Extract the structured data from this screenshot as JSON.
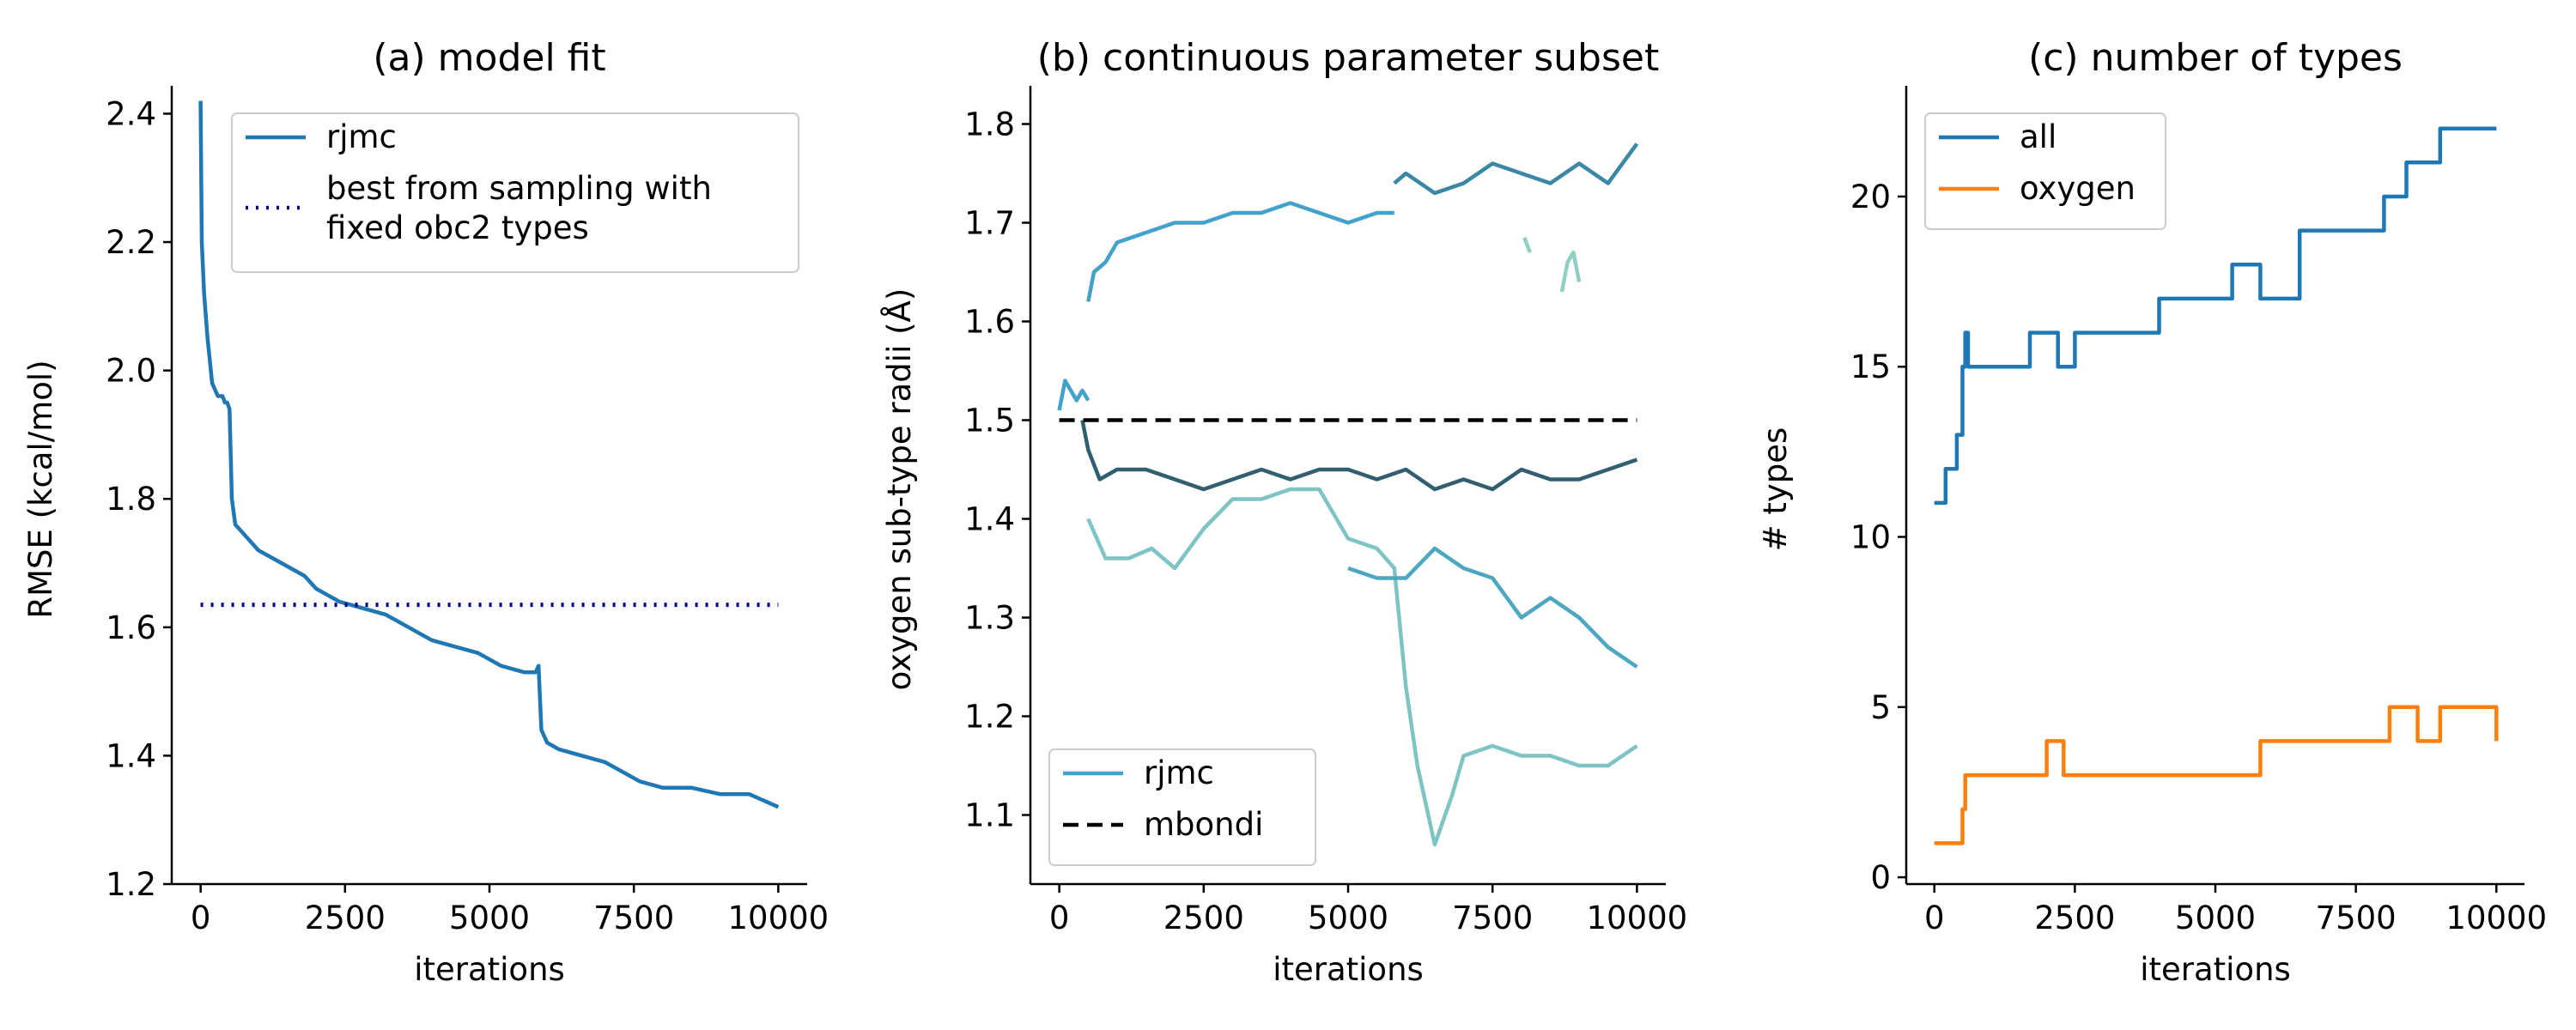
{
  "chart_data": [
    {
      "type": "line",
      "title": "(a) model fit",
      "xlabel": "iterations",
      "ylabel": "RMSE (kcal/mol)",
      "xlim": [
        -500,
        10500
      ],
      "ylim": [
        1.2,
        2.43
      ],
      "xticks": [
        0,
        2500,
        5000,
        7500,
        10000
      ],
      "yticks": [
        1.2,
        1.4,
        1.6,
        1.8,
        2.0,
        2.2,
        2.4
      ],
      "ytick_labels": [
        "1.2",
        "1.4",
        "1.6",
        "1.8",
        "2.0",
        "2.2",
        "2.4"
      ],
      "legend": {
        "position": "upper right",
        "entries": [
          "rjmc",
          "best from sampling with\nfixed obc2 types"
        ]
      },
      "series": [
        {
          "name": "rjmc",
          "color": "#1f77b4",
          "style": "solid",
          "x": [
            0,
            20,
            60,
            120,
            200,
            300,
            380,
            420,
            460,
            500,
            540,
            600,
            800,
            1000,
            1400,
            1800,
            2000,
            2400,
            2800,
            3200,
            3600,
            4000,
            4400,
            4800,
            5200,
            5600,
            5800,
            5850,
            5900,
            6000,
            6200,
            6600,
            7000,
            7400,
            7600,
            8000,
            8500,
            9000,
            9500,
            10000
          ],
          "y": [
            2.42,
            2.2,
            2.12,
            2.05,
            1.98,
            1.96,
            1.96,
            1.95,
            1.95,
            1.94,
            1.8,
            1.76,
            1.74,
            1.72,
            1.7,
            1.68,
            1.66,
            1.64,
            1.63,
            1.62,
            1.6,
            1.58,
            1.57,
            1.56,
            1.54,
            1.53,
            1.53,
            1.54,
            1.44,
            1.42,
            1.41,
            1.4,
            1.39,
            1.37,
            1.36,
            1.35,
            1.35,
            1.34,
            1.34,
            1.32
          ]
        },
        {
          "name": "best from sampling with\nfixed obc2 types",
          "color": "#00008b",
          "style": "dotted",
          "x": [
            0,
            10000
          ],
          "y": [
            1.635,
            1.635
          ]
        }
      ]
    },
    {
      "type": "line",
      "title": "(b) continuous parameter subset",
      "xlabel": "iterations",
      "ylabel": "oxygen sub-type radii (Å)",
      "xlim": [
        -500,
        10500
      ],
      "ylim": [
        1.03,
        1.83
      ],
      "xticks": [
        0,
        2500,
        5000,
        7500,
        10000
      ],
      "yticks": [
        1.1,
        1.2,
        1.3,
        1.4,
        1.5,
        1.6,
        1.7,
        1.8
      ],
      "ytick_labels": [
        "1.1",
        "1.2",
        "1.3",
        "1.4",
        "1.5",
        "1.6",
        "1.7",
        "1.8"
      ],
      "legend": {
        "position": "lower left",
        "entries": [
          "rjmc",
          "mbondi"
        ]
      },
      "series": [
        {
          "name": "rjmc",
          "color": "#43a2ca",
          "style": "solid",
          "x": [
            0,
            100,
            200,
            300,
            400,
            500
          ],
          "y": [
            1.51,
            1.54,
            1.53,
            1.52,
            1.53,
            1.52
          ]
        },
        {
          "name": "",
          "color": "#43a2ca",
          "style": "solid",
          "x": [
            500,
            600,
            800,
            1000,
            1500,
            2000,
            2500,
            3000,
            3500,
            4000,
            4500,
            5000,
            5500,
            5800
          ],
          "y": [
            1.62,
            1.65,
            1.66,
            1.68,
            1.69,
            1.7,
            1.7,
            1.71,
            1.71,
            1.72,
            1.71,
            1.7,
            1.71,
            1.71
          ]
        },
        {
          "name": "",
          "color": "#3a87a6",
          "style": "solid",
          "x": [
            5800,
            6000,
            6500,
            7000,
            7500,
            8000,
            8500,
            9000,
            9500,
            10000
          ],
          "y": [
            1.74,
            1.75,
            1.73,
            1.74,
            1.76,
            1.75,
            1.74,
            1.76,
            1.74,
            1.78
          ]
        },
        {
          "name": "",
          "color": "#315f70",
          "style": "solid",
          "x": [
            400,
            500,
            700,
            1000,
            1500,
            2000,
            2500,
            3000,
            3500,
            4000,
            4500,
            5000,
            5500,
            6000,
            6500,
            7000,
            7500,
            8000,
            8500,
            9000,
            9500,
            10000
          ],
          "y": [
            1.5,
            1.47,
            1.44,
            1.45,
            1.45,
            1.44,
            1.43,
            1.44,
            1.45,
            1.44,
            1.45,
            1.45,
            1.44,
            1.45,
            1.43,
            1.44,
            1.43,
            1.45,
            1.44,
            1.44,
            1.45,
            1.46
          ]
        },
        {
          "name": "",
          "color": "#7fc4c4",
          "style": "solid",
          "x": [
            500,
            800,
            1200,
            1600,
            2000,
            2500,
            3000,
            3500,
            4000,
            4500,
            5000,
            5500,
            5800,
            6000,
            6200,
            6500,
            6800,
            7000,
            7500,
            8000,
            8500,
            9000,
            9500,
            10000
          ],
          "y": [
            1.4,
            1.36,
            1.36,
            1.37,
            1.35,
            1.39,
            1.42,
            1.42,
            1.43,
            1.43,
            1.38,
            1.37,
            1.35,
            1.23,
            1.15,
            1.07,
            1.12,
            1.16,
            1.17,
            1.16,
            1.16,
            1.15,
            1.15,
            1.17
          ]
        },
        {
          "name": "",
          "color": "#4ca8c0",
          "style": "solid",
          "x": [
            5000,
            5500,
            6000,
            6500,
            7000,
            7500,
            8000,
            8500,
            9000,
            9500,
            10000
          ],
          "y": [
            1.35,
            1.34,
            1.34,
            1.37,
            1.35,
            1.34,
            1.3,
            1.32,
            1.3,
            1.27,
            1.25
          ]
        },
        {
          "name": "",
          "color": "#8fcfc4",
          "style": "solid",
          "x": [
            8050,
            8150
          ],
          "y": [
            1.685,
            1.67
          ]
        },
        {
          "name": "",
          "color": "#8fcfc4",
          "style": "solid",
          "x": [
            8700,
            8800,
            8900,
            9000
          ],
          "y": [
            1.63,
            1.66,
            1.67,
            1.64
          ]
        },
        {
          "name": "mbondi",
          "color": "#000000",
          "style": "dashed",
          "x": [
            0,
            10000
          ],
          "y": [
            1.5,
            1.5
          ]
        }
      ]
    },
    {
      "type": "line",
      "title": "(c) number of types",
      "xlabel": "iterations",
      "ylabel": "# types",
      "xlim": [
        -500,
        10500
      ],
      "ylim": [
        -0.2,
        23
      ],
      "xticks": [
        0,
        2500,
        5000,
        7500,
        10000
      ],
      "yticks": [
        0,
        5,
        10,
        15,
        20
      ],
      "ytick_labels": [
        "0",
        "5",
        "10",
        "15",
        "20"
      ],
      "legend": {
        "position": "upper left",
        "entries": [
          "all",
          "oxygen"
        ]
      },
      "series": [
        {
          "name": "all",
          "color": "#1f77b4",
          "style": "step",
          "x": [
            0,
            200,
            300,
            400,
            500,
            550,
            600,
            1600,
            1700,
            2200,
            2500,
            3200,
            4000,
            4800,
            5300,
            5800,
            6500,
            7500,
            8000,
            8400,
            8700,
            9000,
            10000
          ],
          "y": [
            11,
            12,
            12,
            13,
            15,
            16,
            15,
            15,
            16,
            15,
            16,
            16,
            17,
            17,
            18,
            17,
            19,
            19,
            20,
            21,
            21,
            22,
            22
          ]
        },
        {
          "name": "oxygen",
          "color": "#ff7f0e",
          "style": "step",
          "x": [
            0,
            500,
            550,
            1700,
            2000,
            2300,
            3500,
            5000,
            5300,
            5800,
            7900,
            8100,
            8600,
            9000,
            10000
          ],
          "y": [
            1,
            2,
            3,
            3,
            4,
            3,
            3,
            3,
            3,
            4,
            4,
            5,
            4,
            5,
            4
          ]
        }
      ]
    }
  ]
}
